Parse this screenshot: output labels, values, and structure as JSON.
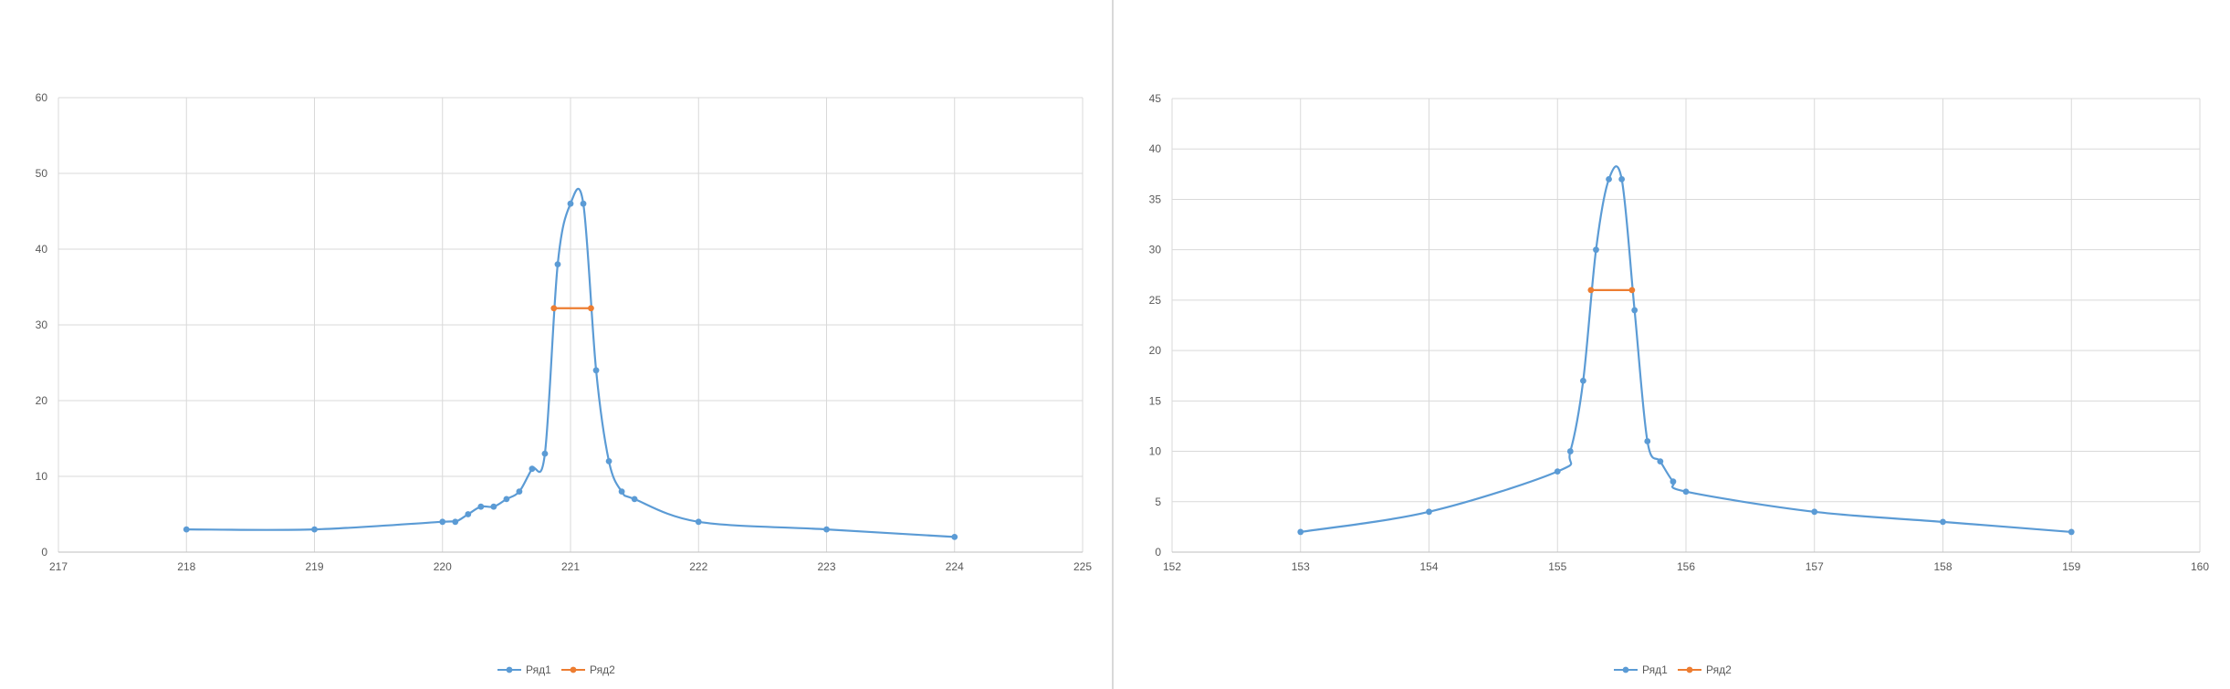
{
  "colors": {
    "series1": "#5b9bd5",
    "series2": "#ed7d31",
    "grid": "#d9d9d9",
    "axis_text": "#595959"
  },
  "chart_data": [
    {
      "type": "scatter",
      "smooth": true,
      "grid": true,
      "legend_position": "bottom",
      "xlim": [
        217,
        225
      ],
      "ylim": [
        0,
        60
      ],
      "xticks": [
        217,
        218,
        219,
        220,
        221,
        222,
        223,
        224,
        225
      ],
      "yticks": [
        0,
        10,
        20,
        30,
        40,
        50,
        60
      ],
      "xtick_labels": [
        "217",
        "218",
        "219",
        "220",
        "221",
        "222",
        "223",
        "224",
        "225"
      ],
      "ytick_labels": [
        "0",
        "10",
        "20",
        "30",
        "40",
        "50",
        "60"
      ],
      "series": [
        {
          "name": "Ряд1",
          "color": "#5b9bd5",
          "x": [
            218,
            219,
            220,
            220.1,
            220.2,
            220.3,
            220.4,
            220.5,
            220.6,
            220.7,
            220.8,
            220.9,
            221,
            221.1,
            221.2,
            221.3,
            221.4,
            221.5,
            222,
            223,
            224
          ],
          "y": [
            3,
            3,
            4,
            4,
            5,
            6,
            6,
            7,
            8,
            11,
            13,
            38,
            46,
            46,
            24,
            12,
            8,
            7,
            4,
            3,
            2
          ]
        },
        {
          "name": "Ряд2",
          "color": "#ed7d31",
          "x": [
            220.87,
            221.16
          ],
          "y": [
            32.2,
            32.2
          ]
        }
      ]
    },
    {
      "type": "scatter",
      "smooth": true,
      "grid": true,
      "legend_position": "bottom",
      "xlim": [
        152,
        160
      ],
      "ylim": [
        0,
        45
      ],
      "xticks": [
        152,
        153,
        154,
        155,
        156,
        157,
        158,
        159,
        160
      ],
      "yticks": [
        0,
        5,
        10,
        15,
        20,
        25,
        30,
        35,
        40,
        45
      ],
      "xtick_labels": [
        "152",
        "153",
        "154",
        "155",
        "156",
        "157",
        "158",
        "159",
        "160"
      ],
      "ytick_labels": [
        "0",
        "5",
        "10",
        "15",
        "20",
        "25",
        "30",
        "35",
        "40",
        "45"
      ],
      "series": [
        {
          "name": "Ряд1",
          "color": "#5b9bd5",
          "x": [
            153,
            154,
            155,
            155.1,
            155.2,
            155.3,
            155.4,
            155.5,
            155.6,
            155.7,
            155.8,
            155.9,
            156,
            157,
            158,
            159
          ],
          "y": [
            2,
            4,
            8,
            10,
            17,
            30,
            37,
            37,
            24,
            11,
            9,
            7,
            6,
            4,
            3,
            2
          ]
        },
        {
          "name": "Ряд2",
          "color": "#ed7d31",
          "x": [
            155.26,
            155.58
          ],
          "y": [
            26,
            26
          ]
        }
      ]
    }
  ]
}
